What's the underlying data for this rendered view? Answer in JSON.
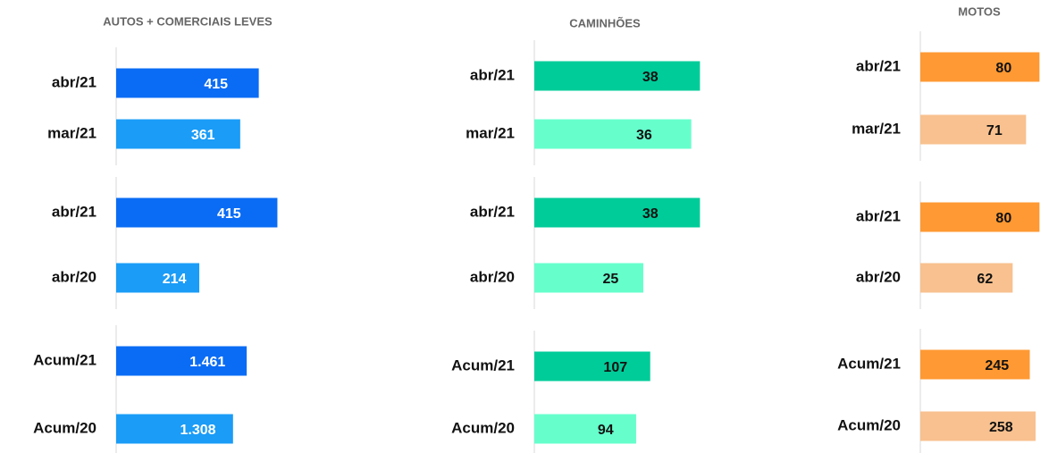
{
  "chart_data": [
    {
      "type": "bar",
      "orientation": "horizontal",
      "title": "AUTOS + COMERCIAIS LEVES",
      "categories": [
        "abr/21",
        "mar/21"
      ],
      "values": [
        415,
        361
      ],
      "colors": [
        "#0a6cf5",
        "#1a9cf7"
      ],
      "xlim": [
        0,
        520
      ]
    },
    {
      "type": "bar",
      "orientation": "horizontal",
      "categories": [
        "abr/21",
        "abr/20"
      ],
      "values": [
        415,
        214
      ],
      "colors": [
        "#0a6cf5",
        "#1a9cf7"
      ],
      "xlim": [
        0,
        460
      ]
    },
    {
      "type": "bar",
      "orientation": "horizontal",
      "categories": [
        "Acum/21",
        "Acum/20"
      ],
      "values": [
        1461,
        1308
      ],
      "value_labels": [
        "1.461",
        "1.308"
      ],
      "colors": [
        "#0a6cf5",
        "#1a9cf7"
      ],
      "xlim": [
        0,
        2000
      ]
    },
    {
      "type": "bar",
      "orientation": "horizontal",
      "title": "CAMINHÕES",
      "categories": [
        "abr/21",
        "mar/21"
      ],
      "values": [
        38,
        36
      ],
      "colors": [
        "#00cc99",
        "#66ffcc"
      ],
      "xlim": [
        0,
        41
      ]
    },
    {
      "type": "bar",
      "orientation": "horizontal",
      "categories": [
        "abr/21",
        "abr/20"
      ],
      "values": [
        38,
        25
      ],
      "colors": [
        "#00cc99",
        "#66ffcc"
      ],
      "xlim": [
        0,
        41
      ]
    },
    {
      "type": "bar",
      "orientation": "horizontal",
      "categories": [
        "Acum/21",
        "Acum/20"
      ],
      "values": [
        107,
        94
      ],
      "colors": [
        "#00cc99",
        "#66ffcc"
      ],
      "xlim": [
        0,
        165
      ]
    },
    {
      "type": "bar",
      "orientation": "horizontal",
      "title": "MOTOS",
      "categories": [
        "abr/21",
        "mar/21"
      ],
      "values": [
        80,
        71
      ],
      "colors": [
        "#ff9933",
        "#f8c18f"
      ],
      "xlim": [
        0,
        120
      ]
    },
    {
      "type": "bar",
      "orientation": "horizontal",
      "categories": [
        "abr/21",
        "abr/20"
      ],
      "values": [
        80,
        62
      ],
      "colors": [
        "#ff9933",
        "#f8c18f"
      ],
      "xlim": [
        0,
        120
      ]
    },
    {
      "type": "bar",
      "orientation": "horizontal",
      "categories": [
        "Acum/21",
        "Acum/20"
      ],
      "values": [
        245,
        258
      ],
      "colors": [
        "#ff9933",
        "#f8c18f"
      ],
      "xlim": [
        0,
        400
      ]
    }
  ]
}
